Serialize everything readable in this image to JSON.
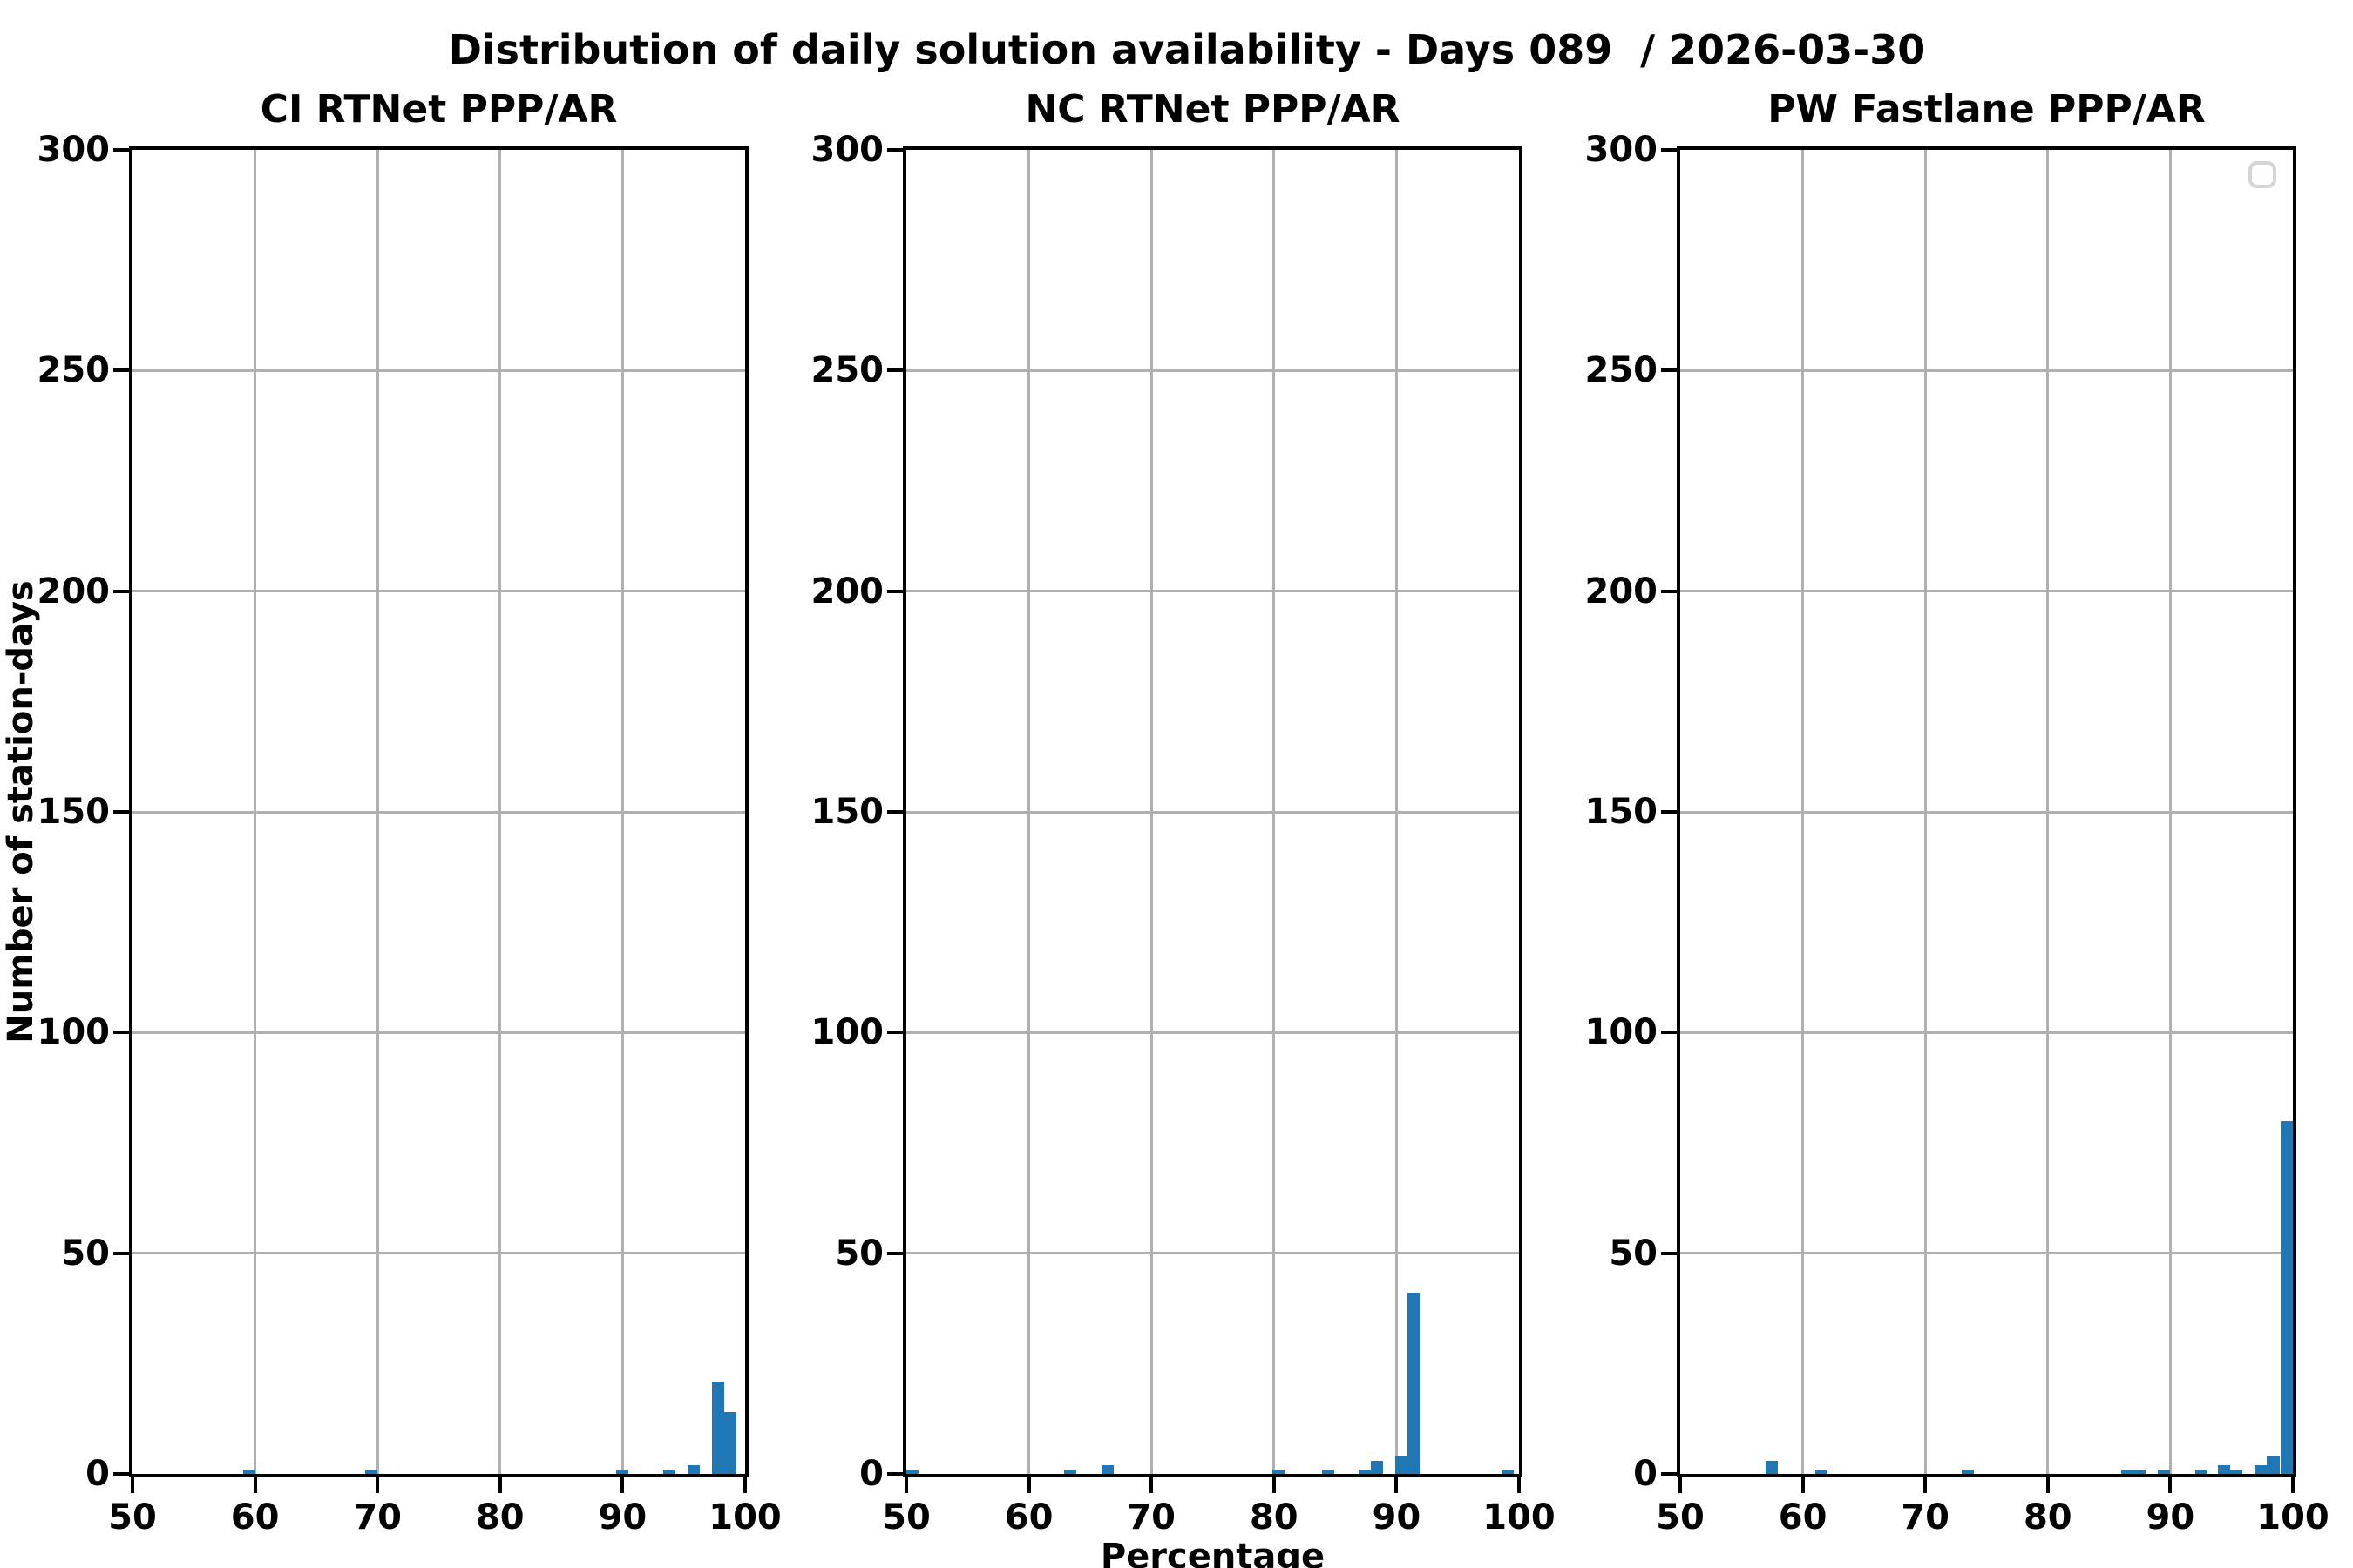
{
  "figure": {
    "suptitle": "Distribution of daily solution availability - Days 089  / 2026-03-30",
    "xlabel": "Percentage",
    "ylabel": "Number of station-days"
  },
  "colors": {
    "bar": "#1f77b4",
    "grid": "#b0b0b0",
    "spine": "#000000",
    "legend_border": "#d5d5d5",
    "background": "#ffffff"
  },
  "chart_data": [
    {
      "type": "bar",
      "subtype": "histogram",
      "title": "CI RTNet PPP/AR",
      "xlabel": "Percentage",
      "ylabel": "Number of station-days",
      "xlim": [
        50,
        100
      ],
      "ylim": [
        0,
        300
      ],
      "xticks": [
        50,
        60,
        70,
        80,
        90,
        100
      ],
      "yticks": [
        0,
        50,
        100,
        150,
        200,
        250,
        300
      ],
      "grid": true,
      "bin_width": 1,
      "bins": [
        {
          "x": 59.0,
          "count": 1
        },
        {
          "x": 69.0,
          "count": 1
        },
        {
          "x": 89.5,
          "count": 1
        },
        {
          "x": 93.3,
          "count": 1
        },
        {
          "x": 95.3,
          "count": 2
        },
        {
          "x": 97.3,
          "count": 21
        },
        {
          "x": 98.3,
          "count": 14
        }
      ]
    },
    {
      "type": "bar",
      "subtype": "histogram",
      "title": "NC RTNet PPP/AR",
      "xlabel": "Percentage",
      "xlim": [
        50,
        100
      ],
      "ylim": [
        0,
        300
      ],
      "xticks": [
        50,
        60,
        70,
        80,
        90,
        100
      ],
      "yticks": [
        0,
        50,
        100,
        150,
        200,
        250,
        300
      ],
      "grid": true,
      "bin_width": 1,
      "bins": [
        {
          "x": 50.0,
          "count": 1
        },
        {
          "x": 62.9,
          "count": 1
        },
        {
          "x": 65.9,
          "count": 2
        },
        {
          "x": 79.9,
          "count": 1
        },
        {
          "x": 83.9,
          "count": 1
        },
        {
          "x": 86.9,
          "count": 1
        },
        {
          "x": 87.9,
          "count": 3
        },
        {
          "x": 89.9,
          "count": 4
        },
        {
          "x": 90.9,
          "count": 41
        },
        {
          "x": 98.6,
          "count": 1
        }
      ]
    },
    {
      "type": "bar",
      "subtype": "histogram",
      "title": "PW Fastlane PPP/AR",
      "xlabel": "Percentage",
      "xlim": [
        50,
        100
      ],
      "ylim": [
        0,
        300
      ],
      "xticks": [
        50,
        60,
        70,
        80,
        90,
        100
      ],
      "yticks": [
        0,
        50,
        100,
        150,
        200,
        250,
        300
      ],
      "grid": true,
      "legend": {
        "visible": true,
        "entries": []
      },
      "bin_width": 1,
      "bins": [
        {
          "x": 57.0,
          "count": 3
        },
        {
          "x": 61.0,
          "count": 1
        },
        {
          "x": 73.0,
          "count": 1
        },
        {
          "x": 86.0,
          "count": 1
        },
        {
          "x": 87.0,
          "count": 1
        },
        {
          "x": 89.0,
          "count": 1
        },
        {
          "x": 92.0,
          "count": 1
        },
        {
          "x": 93.9,
          "count": 2
        },
        {
          "x": 94.9,
          "count": 1
        },
        {
          "x": 96.9,
          "count": 2
        },
        {
          "x": 97.9,
          "count": 4
        },
        {
          "x": 99.0,
          "count": 80
        }
      ]
    }
  ]
}
